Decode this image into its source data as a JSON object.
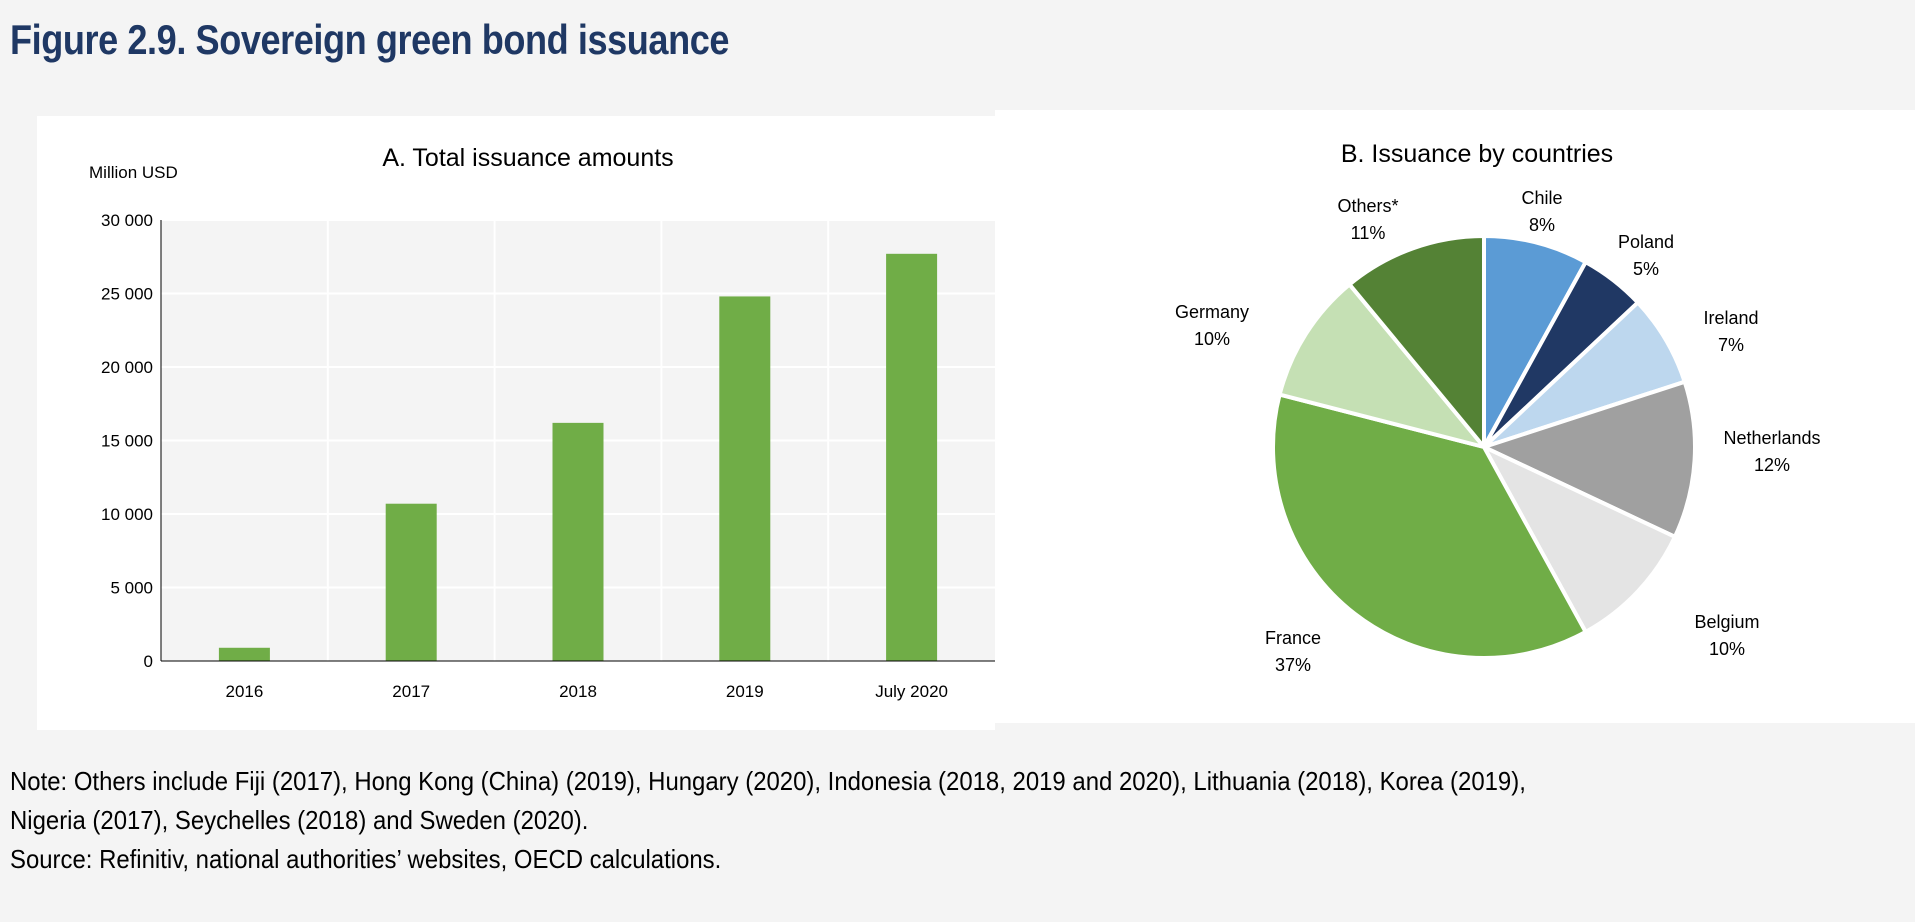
{
  "figure_title": "Figure 2.9. Sovereign green bond issuance",
  "chart_data": [
    {
      "type": "bar",
      "title": "A. Total issuance amounts",
      "ylabel": "Million USD",
      "xlabel": "",
      "categories": [
        "2016",
        "2017",
        "2018",
        "2019",
        "July 2020"
      ],
      "values": [
        900,
        10700,
        16200,
        24800,
        27700
      ],
      "ylim": [
        0,
        30000
      ],
      "yticks": [
        0,
        5000,
        10000,
        15000,
        20000,
        25000,
        30000
      ],
      "ytick_labels": [
        "0",
        "5 000",
        "10 000",
        "15 000",
        "20 000",
        "25 000",
        "30 000"
      ],
      "grid": true,
      "color": "#70ad47"
    },
    {
      "type": "pie",
      "title": "B. Issuance by countries",
      "slices": [
        {
          "label": "Chile",
          "value": 8,
          "text": "8%",
          "color": "#5b9bd5"
        },
        {
          "label": "Poland",
          "value": 5,
          "text": "5%",
          "color": "#203864"
        },
        {
          "label": "Ireland",
          "value": 7,
          "text": "7%",
          "color": "#bdd7ee"
        },
        {
          "label": "Netherlands",
          "value": 12,
          "text": "12%",
          "color": "#a0a0a0"
        },
        {
          "label": "Belgium",
          "value": 10,
          "text": "10%",
          "color": "#e4e4e4"
        },
        {
          "label": "France",
          "value": 37,
          "text": "37%",
          "color": "#70ad47"
        },
        {
          "label": "Germany",
          "value": 10,
          "text": "10%",
          "color": "#c5e0b4"
        },
        {
          "label": "Others*",
          "value": 11,
          "text": "11%",
          "color": "#548235"
        }
      ]
    }
  ],
  "notes": [
    "Note: Others include Fiji (2017), Hong Kong (China) (2019), Hungary (2020), Indonesia (2018, 2019 and 2020), Lithuania (2018), Korea (2019),",
    "Nigeria (2017), Seychelles (2018) and Sweden (2020).",
    "Source: Refinitiv, national authorities’ websites, OECD calculations."
  ]
}
